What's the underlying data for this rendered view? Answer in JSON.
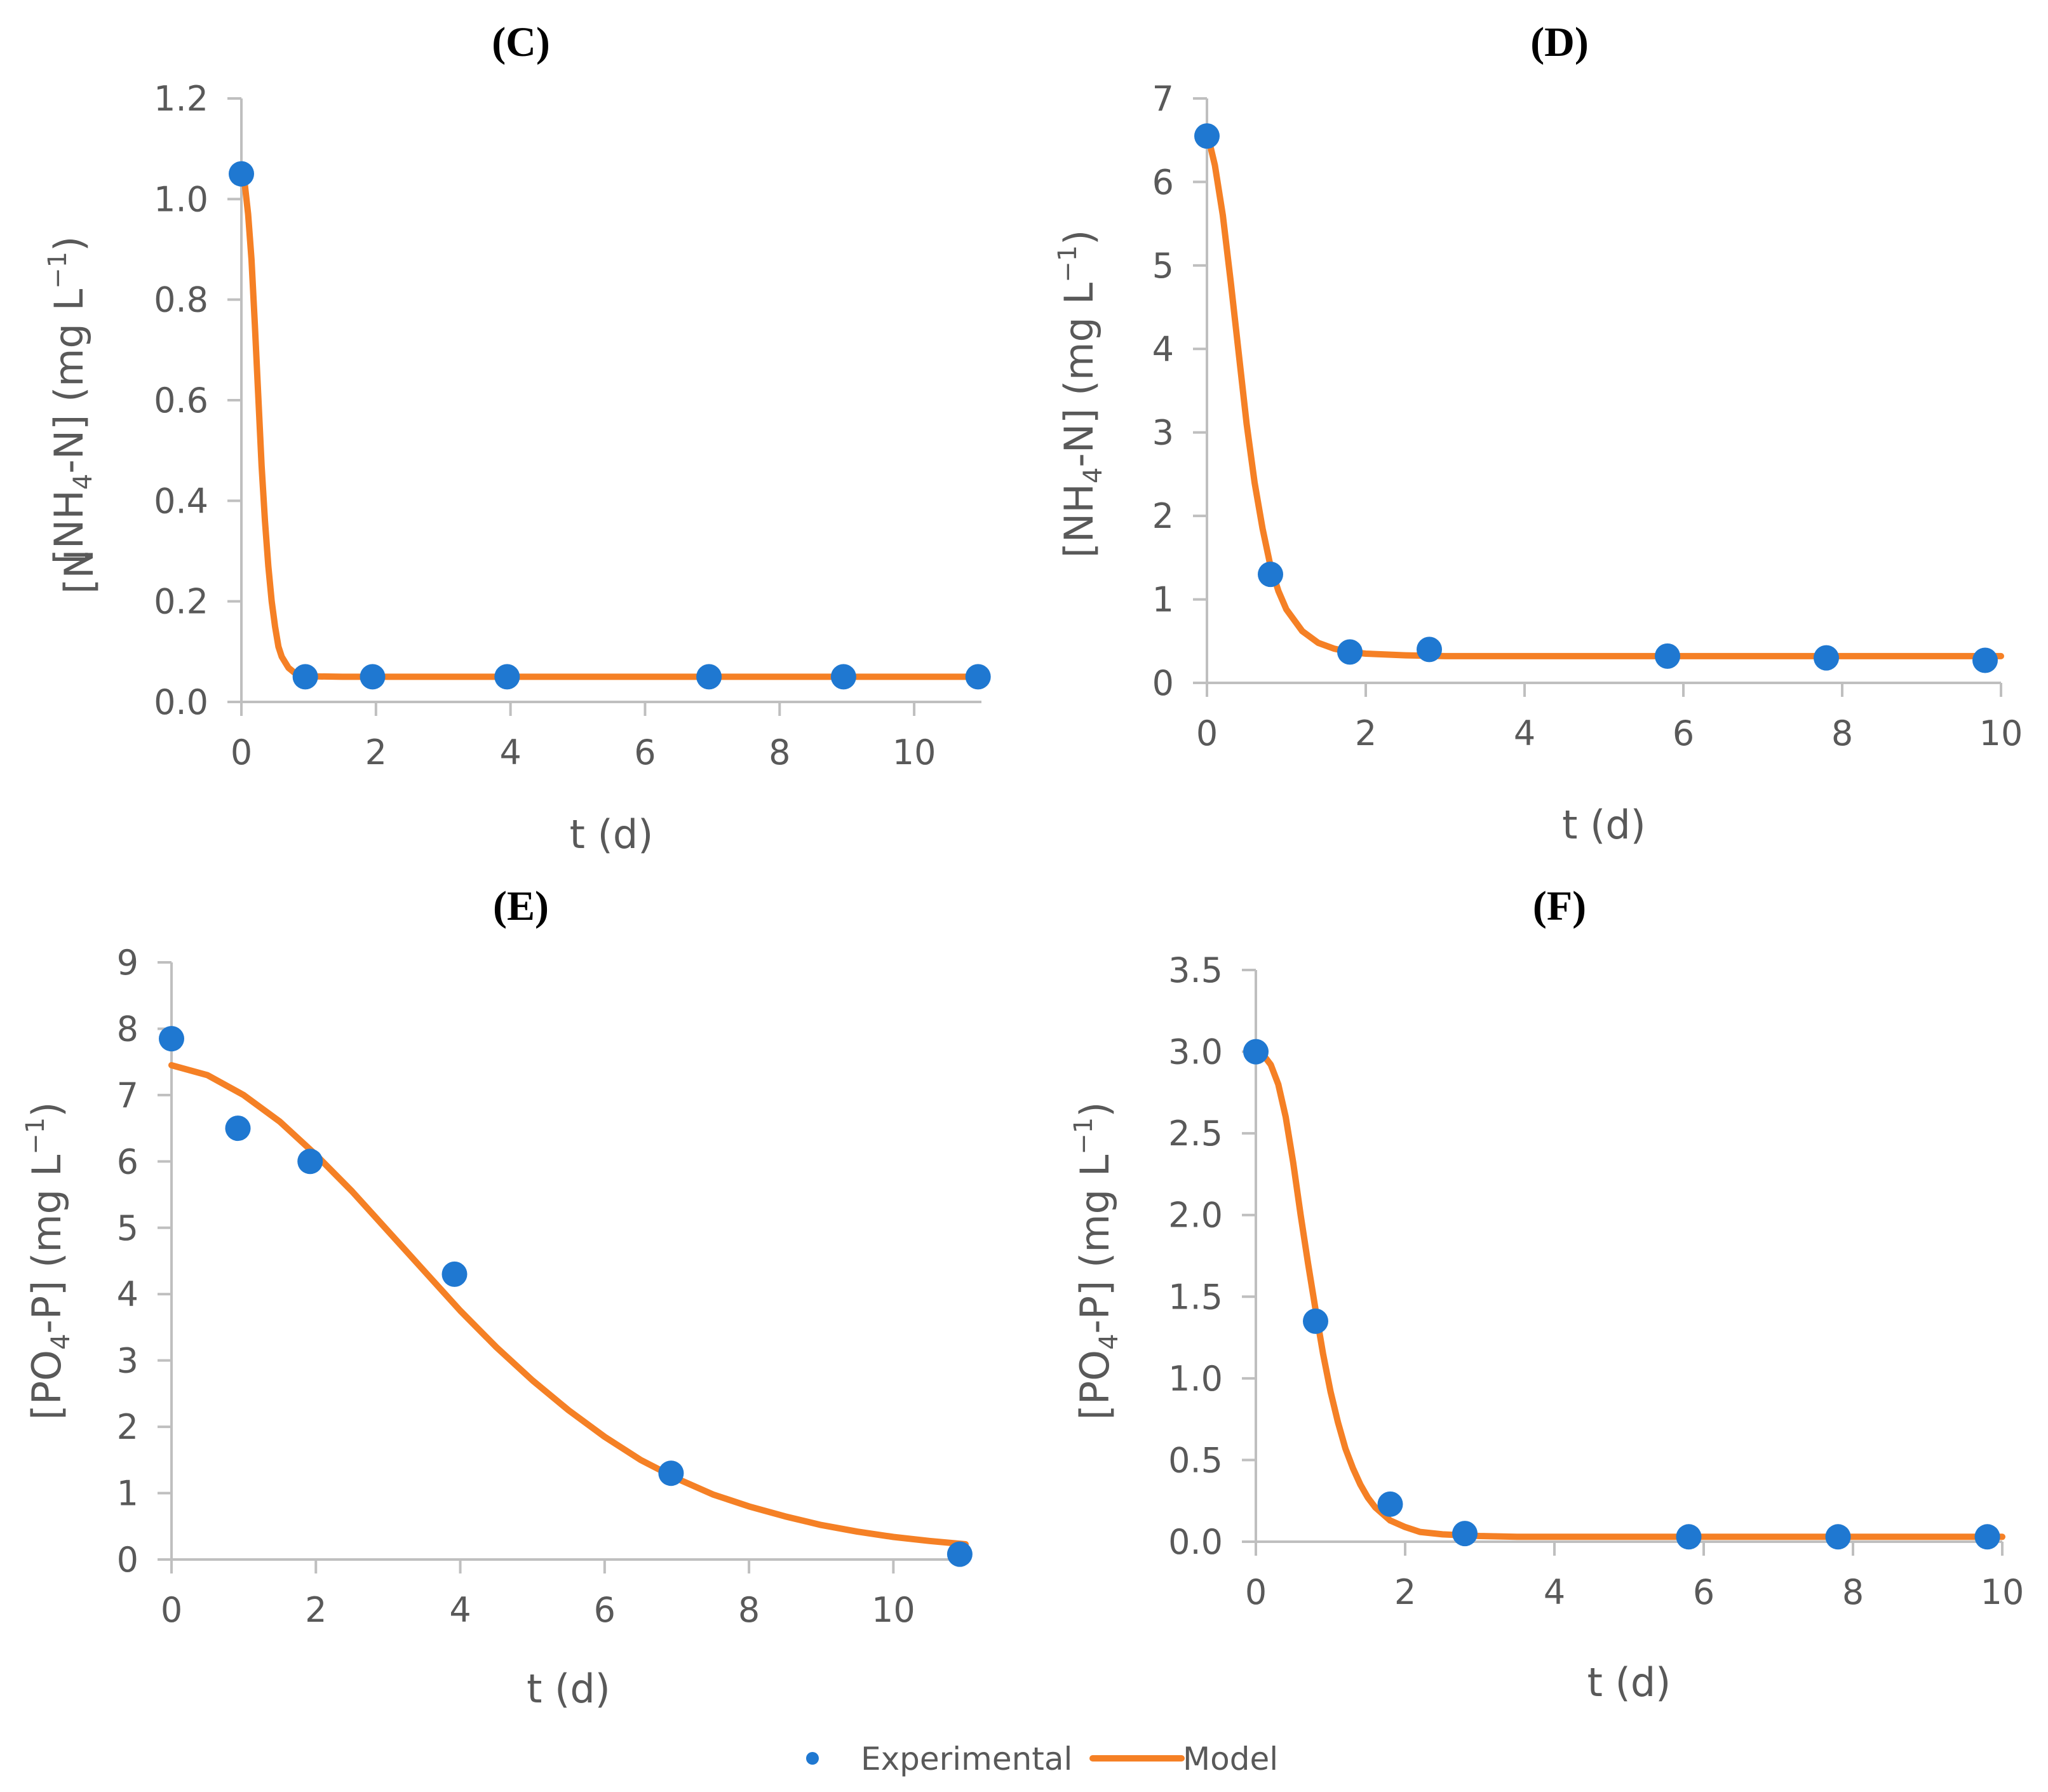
{
  "chart_data": [
    {
      "id": "C",
      "type": "scatter",
      "title": "(C)",
      "xlabel": "t (d)",
      "ylabel": "[NH4-N] (mg L-1)",
      "ylabel_parts": {
        "pre": "[NH",
        "sub": "4",
        "mid": "-N] (mg L",
        "sup": "−1",
        "post": ")"
      },
      "ylabel_clipped_text": "[N",
      "xlim": [
        0,
        11
      ],
      "ylim": [
        0,
        1.2
      ],
      "xticks": [
        0,
        2,
        4,
        6,
        8,
        10
      ],
      "xtick_labels": [
        "0",
        "2",
        "4",
        "6",
        "8",
        "10"
      ],
      "yticks": [
        0,
        0.2,
        0.4,
        0.6,
        0.8,
        1.0,
        1.2
      ],
      "ytick_labels": [
        "0.0",
        "0.2",
        "0.4",
        "0.6",
        "0.8",
        "1.0",
        "1.2"
      ],
      "series": [
        {
          "name": "Experimental",
          "kind": "points",
          "color": "#1f78d1",
          "x": [
            0,
            0.95,
            1.95,
            3.95,
            6.95,
            8.95,
            10.95
          ],
          "y": [
            1.05,
            0.05,
            0.05,
            0.05,
            0.05,
            0.05,
            0.05
          ]
        },
        {
          "name": "Model",
          "kind": "line",
          "color": "#f58025",
          "x": [
            0,
            0.05,
            0.1,
            0.15,
            0.2,
            0.25,
            0.3,
            0.35,
            0.4,
            0.45,
            0.5,
            0.55,
            0.6,
            0.7,
            0.8,
            0.9,
            1.0,
            1.5,
            2,
            4,
            6,
            8,
            10,
            11
          ],
          "y": [
            1.06,
            1.03,
            0.97,
            0.88,
            0.75,
            0.61,
            0.47,
            0.36,
            0.27,
            0.2,
            0.15,
            0.11,
            0.09,
            0.068,
            0.057,
            0.053,
            0.051,
            0.05,
            0.05,
            0.05,
            0.05,
            0.05,
            0.05,
            0.05
          ]
        }
      ]
    },
    {
      "id": "D",
      "type": "scatter",
      "title": "(D)",
      "xlabel": "t (d)",
      "ylabel": "[NH4-N] (mg L-1)",
      "ylabel_parts": {
        "pre": "[NH",
        "sub": "4",
        "mid": "-N] (mg L",
        "sup": "−1",
        "post": ")"
      },
      "xlim": [
        0,
        10
      ],
      "ylim": [
        0,
        7
      ],
      "xticks": [
        0,
        2,
        4,
        6,
        8,
        10
      ],
      "xtick_labels": [
        "0",
        "2",
        "4",
        "6",
        "8",
        "10"
      ],
      "yticks": [
        0,
        1,
        2,
        3,
        4,
        5,
        6,
        7
      ],
      "ytick_labels": [
        "0",
        "1",
        "2",
        "3",
        "4",
        "5",
        "6",
        "7"
      ],
      "series": [
        {
          "name": "Experimental",
          "kind": "points",
          "color": "#1f78d1",
          "x": [
            0,
            0.8,
            1.8,
            2.8,
            5.8,
            7.8,
            9.8
          ],
          "y": [
            6.55,
            1.3,
            0.37,
            0.4,
            0.32,
            0.3,
            0.27
          ]
        },
        {
          "name": "Model",
          "kind": "line",
          "color": "#f58025",
          "x": [
            0,
            0.1,
            0.2,
            0.3,
            0.4,
            0.5,
            0.6,
            0.7,
            0.8,
            0.9,
            1.0,
            1.2,
            1.4,
            1.6,
            1.8,
            2.0,
            2.5,
            3,
            4,
            6,
            8,
            10
          ],
          "y": [
            6.6,
            6.2,
            5.6,
            4.8,
            3.95,
            3.1,
            2.4,
            1.85,
            1.4,
            1.1,
            0.88,
            0.62,
            0.48,
            0.41,
            0.37,
            0.35,
            0.33,
            0.32,
            0.32,
            0.32,
            0.32,
            0.32
          ]
        }
      ]
    },
    {
      "id": "E",
      "type": "scatter",
      "title": "(E)",
      "xlabel": "t (d)",
      "ylabel": "[PO4-P] (mg L-1)",
      "ylabel_parts": {
        "pre": "[PO",
        "sub": "4",
        "mid": "-P] (mg L",
        "sup": "−1",
        "post": ")"
      },
      "xlim": [
        0,
        11
      ],
      "ylim": [
        0,
        9
      ],
      "xticks": [
        0,
        2,
        4,
        6,
        8,
        10
      ],
      "xtick_labels": [
        "0",
        "2",
        "4",
        "6",
        "8",
        "10"
      ],
      "yticks": [
        0,
        1,
        2,
        3,
        4,
        5,
        6,
        7,
        8,
        9
      ],
      "ytick_labels": [
        "0",
        "1",
        "2",
        "3",
        "4",
        "5",
        "6",
        "7",
        "8",
        "9"
      ],
      "series": [
        {
          "name": "Experimental",
          "kind": "points",
          "color": "#1f78d1",
          "x": [
            0,
            0.92,
            1.92,
            3.92,
            6.92,
            10.92
          ],
          "y": [
            7.85,
            6.5,
            6.0,
            4.3,
            1.3,
            0.08
          ]
        },
        {
          "name": "Model",
          "kind": "line",
          "color": "#f58025",
          "x": [
            0,
            0.5,
            1,
            1.5,
            2,
            2.5,
            3,
            3.5,
            4,
            4.5,
            5,
            5.5,
            6,
            6.5,
            7,
            7.5,
            8,
            8.5,
            9,
            9.5,
            10,
            10.5,
            11
          ],
          "y": [
            7.45,
            7.3,
            7.0,
            6.6,
            6.1,
            5.55,
            4.95,
            4.35,
            3.75,
            3.2,
            2.7,
            2.25,
            1.85,
            1.5,
            1.22,
            0.98,
            0.8,
            0.65,
            0.52,
            0.42,
            0.34,
            0.28,
            0.23
          ]
        }
      ]
    },
    {
      "id": "F",
      "type": "scatter",
      "title": "(F)",
      "xlabel": "t (d)",
      "ylabel": "[PO4-P] (mg L-1)",
      "ylabel_parts": {
        "pre": "[PO",
        "sub": "4",
        "mid": "-P] (mg L",
        "sup": "−1",
        "post": ")"
      },
      "xlim": [
        0,
        10
      ],
      "ylim": [
        0,
        3.5
      ],
      "xticks": [
        0,
        2,
        4,
        6,
        8,
        10
      ],
      "xtick_labels": [
        "0",
        "2",
        "4",
        "6",
        "8",
        "10"
      ],
      "yticks": [
        0,
        0.5,
        1.0,
        1.5,
        2.0,
        2.5,
        3.0,
        3.5
      ],
      "ytick_labels": [
        "0.0",
        "0.5",
        "1.0",
        "1.5",
        "2.0",
        "2.5",
        "3.0",
        "3.5"
      ],
      "series": [
        {
          "name": "Experimental",
          "kind": "points",
          "color": "#1f78d1",
          "x": [
            0,
            0.8,
            1.8,
            2.8,
            5.8,
            7.8,
            9.8
          ],
          "y": [
            3.0,
            1.35,
            0.23,
            0.05,
            0.03,
            0.03,
            0.03
          ]
        },
        {
          "name": "Model",
          "kind": "line",
          "color": "#f58025",
          "x": [
            0,
            0.1,
            0.2,
            0.3,
            0.4,
            0.5,
            0.6,
            0.7,
            0.8,
            0.9,
            1.0,
            1.1,
            1.2,
            1.3,
            1.4,
            1.5,
            1.6,
            1.8,
            2.0,
            2.2,
            2.5,
            3,
            3.5,
            4,
            6,
            8,
            10
          ],
          "y": [
            3.0,
            2.98,
            2.92,
            2.8,
            2.6,
            2.32,
            2.0,
            1.7,
            1.42,
            1.15,
            0.92,
            0.73,
            0.57,
            0.45,
            0.35,
            0.27,
            0.21,
            0.13,
            0.09,
            0.06,
            0.045,
            0.035,
            0.03,
            0.03,
            0.03,
            0.03,
            0.03
          ]
        }
      ]
    }
  ],
  "legend": {
    "placement": "bottom-center",
    "items": [
      {
        "label": "Experimental",
        "kind": "points",
        "color": "#1f78d1"
      },
      {
        "label": "Model",
        "kind": "line",
        "color": "#f58025"
      }
    ]
  }
}
